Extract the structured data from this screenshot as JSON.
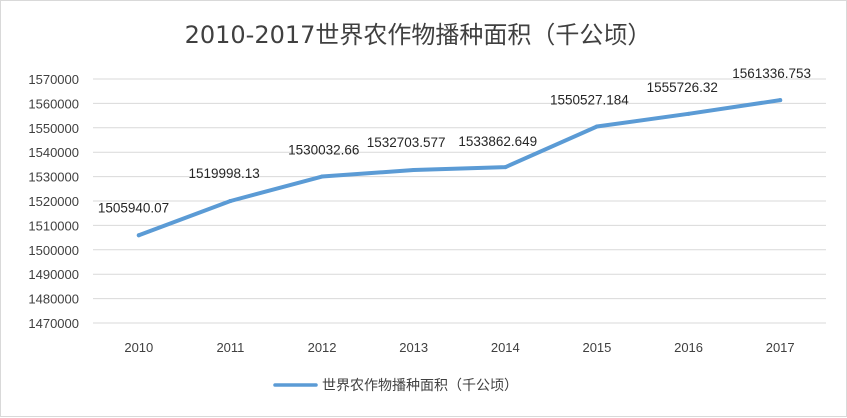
{
  "chart_data": {
    "type": "line",
    "title": "2010-2017世界农作物播种面积（千公顷）",
    "categories": [
      "2010",
      "2011",
      "2012",
      "2013",
      "2014",
      "2015",
      "2016",
      "2017"
    ],
    "series": [
      {
        "name": "世界农作物播种面积（千公顷）",
        "values": [
          1505940.07,
          1519998.13,
          1530032.66,
          1532703.577,
          1533862.649,
          1550527.184,
          1555726.32,
          1561336.753
        ],
        "labels": [
          "1505940.07",
          "1519998.13",
          "1530032.66",
          "1532703.577",
          "1533862.649",
          "1550527.184",
          "1555726.32",
          "1561336.753"
        ],
        "color": "#5b9bd5"
      }
    ],
    "yticks": [
      "1470000",
      "1480000",
      "1490000",
      "1500000",
      "1510000",
      "1520000",
      "1530000",
      "1540000",
      "1550000",
      "1560000",
      "1570000"
    ],
    "ylim": [
      1470000,
      1570000
    ],
    "grid": true,
    "legend_position": "bottom",
    "colors": {
      "gridline": "#d9d9d9",
      "text": "#404040",
      "border": "#d9d9d9"
    }
  }
}
